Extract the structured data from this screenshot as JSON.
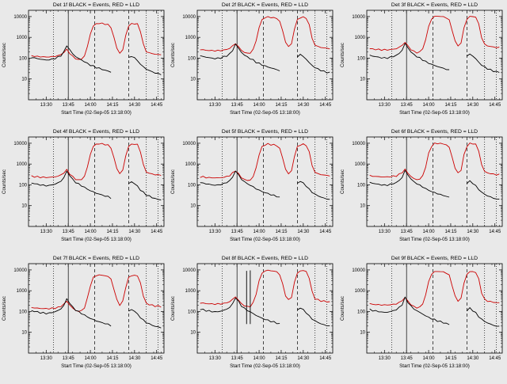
{
  "page": {
    "background": "#e9e9e9"
  },
  "shared": {
    "ylabel": "Counts/sec",
    "xlabel": "Start Time (02-Sep-05 13:18:00)",
    "colors": {
      "events": "#000000",
      "lld": "#cc0000",
      "frame": "#000000",
      "background": "#e9e9e9"
    },
    "xlim": [
      0,
      92
    ],
    "ylim": [
      1,
      20000
    ],
    "y_scale": "log",
    "x_ticks": [
      {
        "t": 12,
        "label": "13:30"
      },
      {
        "t": 27,
        "label": "13:45"
      },
      {
        "t": 42,
        "label": "14:00"
      },
      {
        "t": 57,
        "label": "14:15"
      },
      {
        "t": 72,
        "label": "14:30"
      },
      {
        "t": 87,
        "label": "14:45"
      }
    ],
    "y_ticks": [
      {
        "v": 10,
        "label": "10"
      },
      {
        "v": 100,
        "label": "100"
      },
      {
        "v": 1000,
        "label": "1000"
      },
      {
        "v": 10000,
        "label": "10000"
      }
    ],
    "guide_lines": [
      {
        "t": 17,
        "style": "dotted"
      },
      {
        "t": 27,
        "style": "solid"
      },
      {
        "t": 45,
        "style": "dashed"
      },
      {
        "t": 68,
        "style": "dashed"
      },
      {
        "t": 80,
        "style": "dotted"
      },
      {
        "t": 88,
        "style": "dotted"
      }
    ],
    "x_minutes": [
      2,
      4,
      6,
      8,
      10,
      12,
      14,
      16,
      18,
      20,
      22,
      24,
      26,
      28,
      30,
      32,
      34,
      36,
      38,
      40,
      42,
      44,
      46,
      48,
      50,
      52,
      54,
      56,
      58,
      60,
      62,
      64,
      66,
      68,
      70,
      72,
      74,
      76,
      78,
      80,
      82,
      84,
      86,
      88,
      90
    ],
    "red_base": [
      260,
      250,
      240,
      235,
      230,
      228,
      230,
      235,
      245,
      260,
      300,
      380,
      520,
      350,
      240,
      190,
      170,
      180,
      260,
      700,
      3000,
      7000,
      9000,
      9500,
      9200,
      8800,
      8000,
      6000,
      2000,
      600,
      350,
      500,
      2500,
      7000,
      9000,
      9200,
      8500,
      4000,
      900,
      420,
      360,
      330,
      310,
      300,
      290
    ],
    "black_base": [
      130,
      120,
      112,
      105,
      100,
      96,
      98,
      105,
      115,
      130,
      160,
      230,
      480,
      300,
      190,
      140,
      115,
      95,
      80,
      65,
      55,
      48,
      42,
      38,
      34,
      31,
      28,
      25,
      null,
      null,
      null,
      null,
      null,
      120,
      150,
      120,
      90,
      60,
      45,
      35,
      30,
      26,
      23,
      21,
      20
    ]
  },
  "chart_data": [
    {
      "type": "line",
      "title": "Det 1f BLACK = Events, RED = LLD",
      "series": [
        {
          "name": "Events",
          "color": "black"
        },
        {
          "name": "LLD",
          "color": "red"
        }
      ],
      "red_scale": 0.5,
      "black_scale": 0.85
    },
    {
      "type": "line",
      "title": "Det 2f BLACK = Events, RED = LLD",
      "series": [
        {
          "name": "Events",
          "color": "black"
        },
        {
          "name": "LLD",
          "color": "red"
        }
      ],
      "red_scale": 1.0,
      "black_scale": 1.0
    },
    {
      "type": "line",
      "title": "Det 3f BLACK = Events, RED = LLD",
      "series": [
        {
          "name": "Events",
          "color": "black"
        },
        {
          "name": "LLD",
          "color": "red"
        }
      ],
      "red_scale": 1.1,
      "black_scale": 1.05
    },
    {
      "type": "line",
      "title": "Det 4f BLACK = Events, RED = LLD",
      "series": [
        {
          "name": "Events",
          "color": "black"
        },
        {
          "name": "LLD",
          "color": "red"
        }
      ],
      "red_scale": 1.0,
      "black_scale": 0.95
    },
    {
      "type": "line",
      "title": "Det 5f BLACK = Events, RED = LLD",
      "series": [
        {
          "name": "Events",
          "color": "black"
        },
        {
          "name": "LLD",
          "color": "red"
        }
      ],
      "red_scale": 0.95,
      "black_scale": 1.0
    },
    {
      "type": "line",
      "title": "Det 6f BLACK = Events, RED = LLD",
      "series": [
        {
          "name": "Events",
          "color": "black"
        },
        {
          "name": "LLD",
          "color": "red"
        }
      ],
      "red_scale": 1.05,
      "black_scale": 1.0
    },
    {
      "type": "line",
      "title": "Det 7f BLACK = Events, RED = LLD",
      "series": [
        {
          "name": "Events",
          "color": "black"
        },
        {
          "name": "LLD",
          "color": "red"
        }
      ],
      "red_scale": 0.6,
      "black_scale": 0.85
    },
    {
      "type": "line",
      "title": "Det 8f BLACK = Events, RED = LLD",
      "series": [
        {
          "name": "Events",
          "color": "black"
        },
        {
          "name": "LLD",
          "color": "red"
        }
      ],
      "red_scale": 1.0,
      "black_scale": 1.0,
      "black_spikes": [
        {
          "t": 33.5,
          "v": 9000
        },
        {
          "t": 36,
          "v": 9500
        }
      ]
    },
    {
      "type": "line",
      "title": "Det 9f BLACK = Events, RED = LLD",
      "series": [
        {
          "name": "Events",
          "color": "black"
        },
        {
          "name": "LLD",
          "color": "red"
        }
      ],
      "red_scale": 0.9,
      "black_scale": 0.95
    }
  ]
}
